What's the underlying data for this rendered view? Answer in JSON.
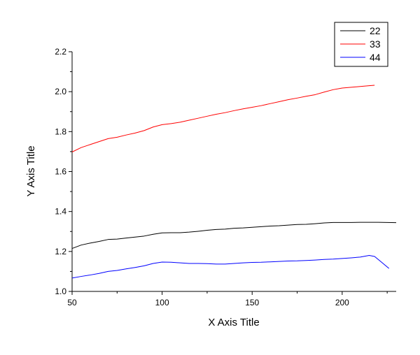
{
  "chart_data": {
    "type": "line",
    "title": "",
    "xlabel": "X Axis Title",
    "ylabel": "Y Axis Title",
    "xlim": [
      50,
      230
    ],
    "ylim": [
      1.0,
      2.2
    ],
    "x_ticks": [
      50,
      100,
      150,
      200
    ],
    "y_ticks": [
      1.0,
      1.2,
      1.4,
      1.6,
      1.8,
      2.0,
      2.2
    ],
    "grid": false,
    "legend_position": "top-right",
    "series": [
      {
        "name": "22",
        "color": "#000000",
        "x": [
          50,
          55,
          60,
          65,
          70,
          75,
          80,
          85,
          90,
          95,
          100,
          105,
          110,
          115,
          120,
          125,
          130,
          135,
          140,
          145,
          150,
          155,
          160,
          165,
          170,
          175,
          180,
          185,
          190,
          195,
          200,
          205,
          210,
          215,
          220,
          225,
          230
        ],
        "y": [
          1.215,
          1.232,
          1.242,
          1.25,
          1.26,
          1.262,
          1.267,
          1.272,
          1.277,
          1.286,
          1.293,
          1.294,
          1.294,
          1.297,
          1.301,
          1.306,
          1.31,
          1.312,
          1.316,
          1.318,
          1.321,
          1.324,
          1.327,
          1.329,
          1.332,
          1.335,
          1.336,
          1.339,
          1.343,
          1.345,
          1.345,
          1.345,
          1.346,
          1.346,
          1.346,
          1.345,
          1.344
        ]
      },
      {
        "name": "33",
        "color": "#ff0000",
        "x": [
          50,
          55,
          60,
          65,
          70,
          75,
          80,
          85,
          90,
          95,
          100,
          105,
          110,
          115,
          120,
          125,
          130,
          135,
          140,
          145,
          150,
          155,
          160,
          165,
          170,
          175,
          180,
          185,
          190,
          195,
          200,
          205,
          210,
          215,
          218
        ],
        "y": [
          1.698,
          1.72,
          1.735,
          1.75,
          1.765,
          1.772,
          1.783,
          1.793,
          1.805,
          1.823,
          1.835,
          1.84,
          1.847,
          1.857,
          1.867,
          1.877,
          1.887,
          1.895,
          1.905,
          1.914,
          1.922,
          1.93,
          1.94,
          1.95,
          1.96,
          1.968,
          1.977,
          1.985,
          1.998,
          2.01,
          2.018,
          2.022,
          2.026,
          2.03,
          2.032
        ]
      },
      {
        "name": "44",
        "color": "#0000ff",
        "x": [
          50,
          55,
          60,
          65,
          70,
          75,
          80,
          85,
          90,
          95,
          100,
          105,
          110,
          115,
          120,
          125,
          130,
          135,
          140,
          145,
          150,
          155,
          160,
          165,
          170,
          175,
          180,
          185,
          190,
          195,
          200,
          205,
          210,
          215,
          218,
          222,
          226
        ],
        "y": [
          1.067,
          1.075,
          1.082,
          1.09,
          1.1,
          1.105,
          1.113,
          1.12,
          1.128,
          1.14,
          1.147,
          1.146,
          1.143,
          1.14,
          1.14,
          1.139,
          1.137,
          1.137,
          1.14,
          1.143,
          1.145,
          1.146,
          1.148,
          1.15,
          1.152,
          1.153,
          1.155,
          1.157,
          1.16,
          1.162,
          1.165,
          1.168,
          1.172,
          1.18,
          1.175,
          1.145,
          1.115
        ]
      }
    ]
  }
}
